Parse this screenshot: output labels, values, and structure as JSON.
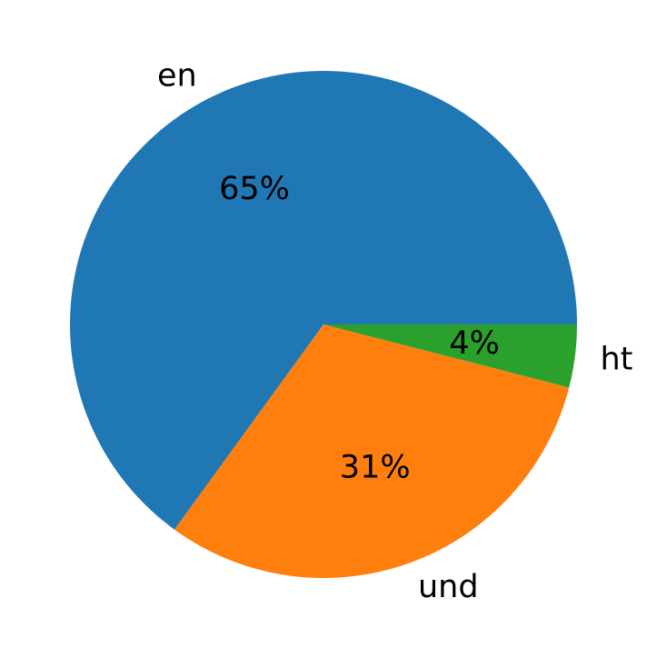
{
  "chart_data": {
    "type": "pie",
    "title": "",
    "labels": [
      "en",
      "und",
      "ht"
    ],
    "values": [
      65,
      31,
      4
    ],
    "pct_labels": [
      "65%",
      "31%",
      "4%"
    ],
    "colors": [
      "#1f77b4",
      "#ff7f0e",
      "#2ca02c"
    ],
    "text_color": "#000000",
    "background": "#ffffff",
    "start_angle": 0,
    "counterclock": true,
    "label_distance": 1.1,
    "pct_distance": 0.6,
    "legend": "none",
    "grid": false
  }
}
